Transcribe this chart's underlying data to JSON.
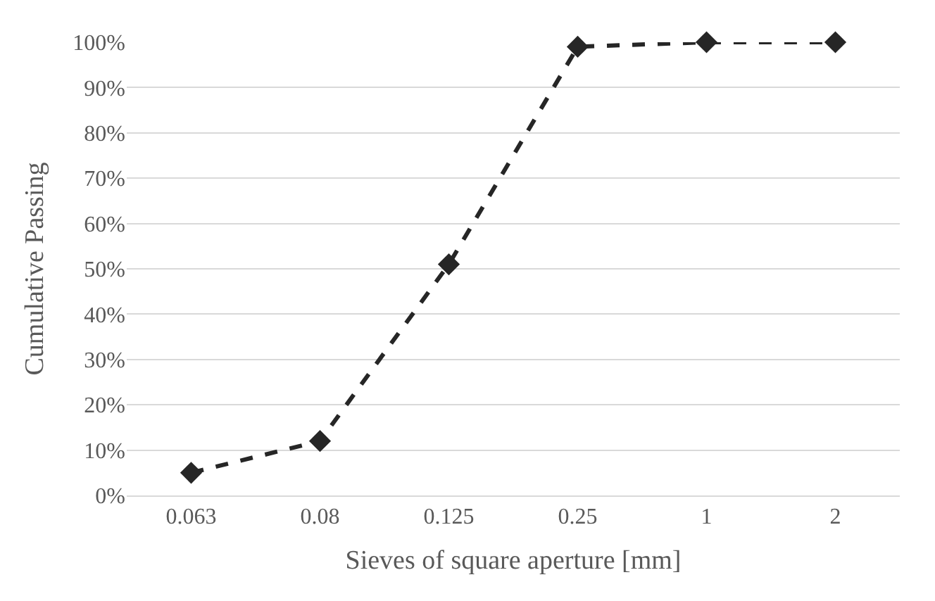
{
  "chart_data": {
    "type": "line",
    "xlabel": "Sieves of square aperture [mm]",
    "ylabel": "Cumulative Passing",
    "categories": [
      "0.063",
      "0.08",
      "0.125",
      "0.25",
      "1",
      "2"
    ],
    "series": [
      {
        "color": "#262626",
        "values": [
          5,
          12,
          51,
          99,
          100,
          100
        ]
      }
    ],
    "ylim": [
      0,
      100
    ],
    "yticks": [
      {
        "value": 0,
        "label": "0%"
      },
      {
        "value": 10,
        "label": "10%"
      },
      {
        "value": 20,
        "label": "20%"
      },
      {
        "value": 30,
        "label": "30%"
      },
      {
        "value": 40,
        "label": "40%"
      },
      {
        "value": 50,
        "label": "50%"
      },
      {
        "value": 60,
        "label": "60%"
      },
      {
        "value": 70,
        "label": "70%"
      },
      {
        "value": 80,
        "label": "80%"
      },
      {
        "value": 90,
        "label": "90%"
      },
      {
        "value": 100,
        "label": "100%"
      }
    ],
    "grid": "y",
    "marker": "diamond",
    "line_style": "dashed"
  }
}
